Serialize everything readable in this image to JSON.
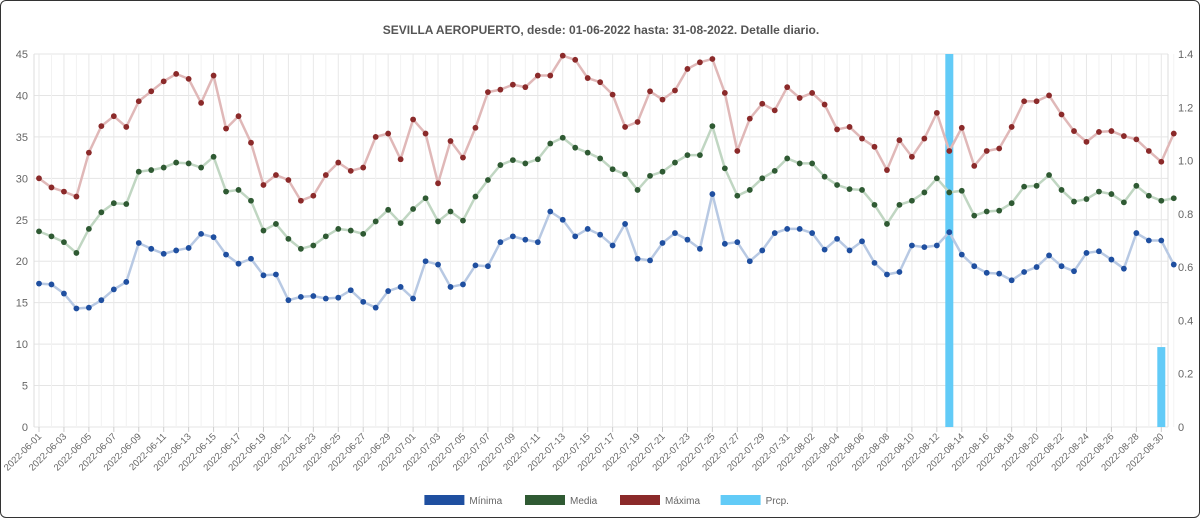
{
  "chart_data": {
    "type": "line",
    "title": "SEVILLA AEROPUERTO, desde: 01-06-2022 hasta: 31-08-2022. Detalle diario.",
    "start_date": "2022-06-01",
    "x_tick_labels": [
      "2022-06-01",
      "2022-06-03",
      "2022-06-05",
      "2022-06-07",
      "2022-06-09",
      "2022-06-11",
      "2022-06-13",
      "2022-06-15",
      "2022-06-17",
      "2022-06-19",
      "2022-06-21",
      "2022-06-23",
      "2022-06-25",
      "2022-06-27",
      "2022-06-29",
      "2022-07-01",
      "2022-07-03",
      "2022-07-05",
      "2022-07-07",
      "2022-07-09",
      "2022-07-11",
      "2022-07-13",
      "2022-07-15",
      "2022-07-17",
      "2022-07-19",
      "2022-07-21",
      "2022-07-23",
      "2022-07-25",
      "2022-07-27",
      "2022-07-29",
      "2022-07-31",
      "2022-08-02",
      "2022-08-04",
      "2022-08-06",
      "2022-08-08",
      "2022-08-10",
      "2022-08-12",
      "2022-08-14",
      "2022-08-16",
      "2022-08-18",
      "2022-08-20",
      "2022-08-22",
      "2022-08-24",
      "2022-08-26",
      "2022-08-28",
      "2022-08-30"
    ],
    "y_left": {
      "min": 0,
      "max": 45,
      "step": 5,
      "ticks": [
        "0",
        "5",
        "10",
        "15",
        "20",
        "25",
        "30",
        "35",
        "40",
        "45"
      ]
    },
    "y_right": {
      "min": 0,
      "max": 1.4,
      "step": 0.2,
      "ticks": [
        "0",
        "0.2",
        "0.4",
        "0.6",
        "0.8",
        "1.0",
        "1.2",
        "1.4"
      ]
    },
    "grid": true,
    "legend_position": "bottom",
    "series": [
      {
        "name": "Mínima",
        "kind": "line",
        "axis": "left",
        "color": "#1f4fa0",
        "line_color": "#b8c9e3",
        "values": [
          17.3,
          17.2,
          16.1,
          14.3,
          14.4,
          15.3,
          16.6,
          17.5,
          22.2,
          21.5,
          20.9,
          21.3,
          21.6,
          23.3,
          22.9,
          20.8,
          19.7,
          20.3,
          18.3,
          18.4,
          15.3,
          15.7,
          15.8,
          15.5,
          15.6,
          16.5,
          15.1,
          14.4,
          16.4,
          16.9,
          15.5,
          20.0,
          19.6,
          16.9,
          17.2,
          19.5,
          19.4,
          22.3,
          23.0,
          22.6,
          22.3,
          26.0,
          25.0,
          23.0,
          23.9,
          23.2,
          21.9,
          24.5,
          20.3,
          20.1,
          22.2,
          23.4,
          22.6,
          21.5,
          28.1,
          22.1,
          22.3,
          20.0,
          21.3,
          23.4,
          23.9,
          23.9,
          23.4,
          21.4,
          22.7,
          21.3,
          22.4,
          19.8,
          18.4,
          18.7,
          21.9,
          21.7,
          21.9,
          23.5,
          20.8,
          19.4,
          18.6,
          18.5,
          17.7,
          18.7,
          19.3,
          20.7,
          19.4,
          18.8,
          21.0,
          21.2,
          20.2,
          19.1,
          23.4,
          22.5,
          22.5,
          19.6
        ]
      },
      {
        "name": "Media",
        "kind": "line",
        "axis": "left",
        "color": "#2f5a33",
        "line_color": "#c0d6c2",
        "values": [
          23.6,
          23.0,
          22.3,
          21.0,
          23.9,
          25.9,
          27.0,
          26.9,
          30.8,
          31.0,
          31.3,
          31.9,
          31.8,
          31.3,
          32.6,
          28.4,
          28.6,
          27.3,
          23.7,
          24.5,
          22.7,
          21.5,
          21.9,
          23.0,
          23.9,
          23.7,
          23.3,
          24.8,
          26.2,
          24.6,
          26.3,
          27.6,
          24.8,
          26.0,
          24.9,
          27.8,
          29.8,
          31.6,
          32.2,
          31.8,
          32.3,
          34.2,
          34.9,
          33.7,
          33.1,
          32.4,
          31.1,
          30.5,
          28.6,
          30.3,
          30.8,
          31.9,
          32.8,
          32.8,
          36.3,
          31.2,
          27.9,
          28.6,
          30.0,
          30.9,
          32.4,
          31.8,
          31.8,
          30.2,
          29.2,
          28.7,
          28.6,
          26.8,
          24.5,
          26.8,
          27.3,
          28.3,
          30.0,
          28.3,
          28.5,
          25.5,
          26.0,
          26.1,
          27.0,
          29.0,
          29.1,
          30.4,
          28.6,
          27.2,
          27.5,
          28.4,
          28.1,
          27.1,
          29.1,
          27.9,
          27.3,
          27.6
        ]
      },
      {
        "name": "Máxima",
        "kind": "line",
        "axis": "left",
        "color": "#8b2a2a",
        "line_color": "#e0b8b8",
        "values": [
          30.0,
          28.9,
          28.4,
          27.8,
          33.1,
          36.3,
          37.5,
          36.2,
          39.3,
          40.5,
          41.7,
          42.6,
          42.0,
          39.1,
          42.4,
          36.0,
          37.5,
          34.3,
          29.2,
          30.4,
          29.8,
          27.3,
          27.9,
          30.4,
          31.9,
          30.9,
          31.3,
          35.0,
          35.4,
          32.3,
          37.1,
          35.4,
          29.4,
          34.5,
          32.5,
          36.1,
          40.4,
          40.7,
          41.3,
          41.0,
          42.4,
          42.4,
          44.8,
          44.3,
          42.1,
          41.6,
          40.1,
          36.2,
          36.8,
          40.5,
          39.5,
          40.6,
          43.2,
          44.0,
          44.4,
          40.3,
          33.3,
          37.2,
          39.0,
          38.2,
          41.0,
          39.7,
          40.3,
          38.9,
          35.9,
          36.2,
          34.8,
          33.8,
          31.0,
          34.6,
          32.6,
          34.8,
          37.9,
          33.3,
          36.1,
          31.5,
          33.3,
          33.6,
          36.2,
          39.3,
          39.3,
          40.0,
          37.7,
          35.7,
          34.4,
          35.6,
          35.7,
          35.1,
          34.7,
          33.3,
          32.0,
          35.4
        ]
      },
      {
        "name": "Prcp.",
        "kind": "bar",
        "axis": "right",
        "color": "#62cbf7",
        "values": [
          0,
          0,
          0,
          0,
          0,
          0,
          0,
          0,
          0,
          0,
          0,
          0,
          0,
          0,
          0,
          0,
          0,
          0,
          0,
          0,
          0,
          0,
          0,
          0,
          0,
          0,
          0,
          0,
          0,
          0,
          0,
          0,
          0,
          0,
          0,
          0,
          0,
          0,
          0,
          0,
          0,
          0,
          0,
          0,
          0,
          0,
          0,
          0,
          0,
          0,
          0,
          0,
          0,
          0,
          0,
          0,
          0,
          0,
          0,
          0,
          0,
          0,
          0,
          0,
          0,
          0,
          0,
          0,
          0,
          0,
          0,
          0,
          0,
          1.4,
          0,
          0,
          0,
          0,
          0,
          0,
          0,
          0,
          0,
          0,
          0,
          0,
          0,
          0,
          0,
          0,
          0.3,
          0
        ]
      }
    ]
  }
}
